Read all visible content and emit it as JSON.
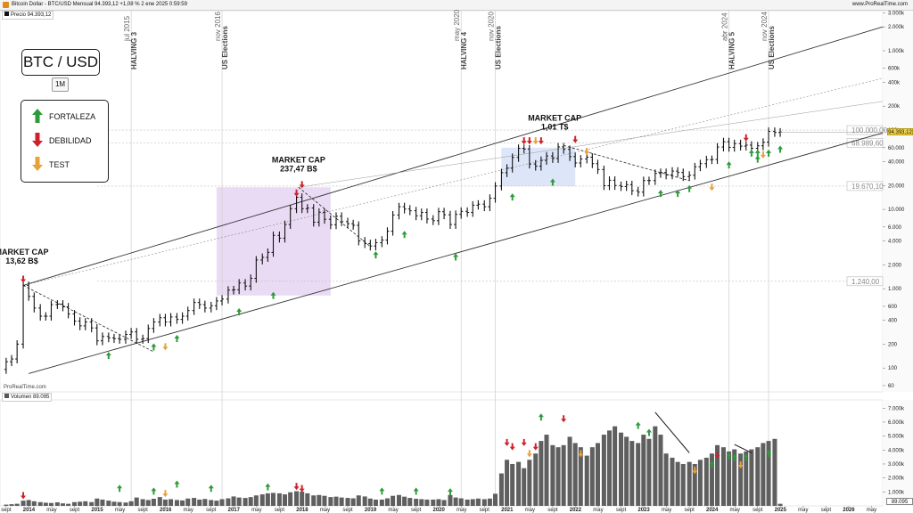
{
  "header": {
    "title": "Bitcoin Dollar - BTC/USD Mensual 94.393,12 +1,08 % 2 ene 2025 0:59:59",
    "brand": "www.ProRealTime.com"
  },
  "price_panel": {
    "label": "Precio 94.393,12",
    "symbol_box": "BTC / USD",
    "timeframe": "1M",
    "watermark": "ProRealTime.com"
  },
  "legend": {
    "items": [
      {
        "label": "FORTALEZA",
        "color": "#2e9a3a",
        "dir": "up"
      },
      {
        "label": "DEBILIDAD",
        "color": "#d0202a",
        "dir": "down"
      },
      {
        "label": "TEST",
        "color": "#e8a13a",
        "dir": "down"
      }
    ]
  },
  "events": [
    {
      "date": "jul 2015",
      "label": "HALVING 3",
      "t": 2015.5
    },
    {
      "date": "nov 2016",
      "label": "US Elections",
      "t": 2016.83
    },
    {
      "date": "may 2020",
      "label": "HALVING 4",
      "t": 2020.33
    },
    {
      "date": "nov 2020",
      "label": "US Elections",
      "t": 2020.83
    },
    {
      "date": "abr 2024",
      "label": "HALVING 5",
      "t": 2024.25
    },
    {
      "date": "nov 2024",
      "label": "US Elections",
      "t": 2024.83
    }
  ],
  "annotations": [
    {
      "line1": "MARKET CAP",
      "line2": "13,62 B$",
      "t": 2013.9,
      "price": 1300
    },
    {
      "line1": "MARKET CAP",
      "line2": "237,47 B$",
      "t": 2017.95,
      "price": 19000
    },
    {
      "line1": "MARKET CAP",
      "line2": "1,01 T$",
      "t": 2021.7,
      "price": 64000
    }
  ],
  "levels": [
    {
      "value": "100.000,00",
      "price": 100000
    },
    {
      "value": "68.989,60",
      "price": 68989.6
    },
    {
      "value": "19.670,10",
      "price": 19670.1
    },
    {
      "value": "1.240,00",
      "price": 1240
    }
  ],
  "last_price_tag": "94.393,12",
  "volume_panel": {
    "label": "Volumen 89.095",
    "last_tag": "89.095"
  },
  "x_axis_labels": [
    "sept",
    "2014",
    "may",
    "sept",
    "2015",
    "may",
    "sept",
    "2016",
    "may",
    "sept",
    "2017",
    "may",
    "sept",
    "2018",
    "may",
    "sept",
    "2019",
    "may",
    "sept",
    "2020",
    "may",
    "sept",
    "2021",
    "may",
    "sept",
    "2022",
    "may",
    "sept",
    "2023",
    "may",
    "sept",
    "2024",
    "may",
    "sept",
    "2025",
    "may",
    "sept",
    "2026",
    "may"
  ],
  "chart_data": {
    "type": "bar",
    "title": "Bitcoin Dollar - BTC/USD Mensual",
    "scale": "log",
    "price_ticks": [
      "3.000k",
      "2.000k",
      "1.000k",
      "600k",
      "400k",
      "200k",
      "100k",
      "60.000",
      "40.000",
      "20.000",
      "10.000",
      "6.000",
      "4.000",
      "2.000",
      "1.000",
      "600",
      "400",
      "200",
      "100",
      "60"
    ],
    "volume_ticks": [
      "7.000k",
      "6.000k",
      "5.000k",
      "4.000k",
      "3.000k",
      "2.000k",
      "1.000k"
    ],
    "series": [
      {
        "name": "Precio",
        "t": [
          2013.67,
          2013.75,
          2013.83,
          2013.92,
          2014.0,
          2014.08,
          2014.17,
          2014.25,
          2014.33,
          2014.42,
          2014.5,
          2014.58,
          2014.67,
          2014.75,
          2014.83,
          2014.92,
          2015.0,
          2015.08,
          2015.17,
          2015.25,
          2015.33,
          2015.42,
          2015.5,
          2015.58,
          2015.67,
          2015.75,
          2015.83,
          2015.92,
          2016.0,
          2016.08,
          2016.17,
          2016.25,
          2016.33,
          2016.42,
          2016.5,
          2016.58,
          2016.67,
          2016.75,
          2016.83,
          2016.92,
          2017.0,
          2017.08,
          2017.17,
          2017.25,
          2017.33,
          2017.42,
          2017.5,
          2017.58,
          2017.67,
          2017.75,
          2017.83,
          2017.92,
          2018.0,
          2018.08,
          2018.17,
          2018.25,
          2018.33,
          2018.42,
          2018.5,
          2018.58,
          2018.67,
          2018.75,
          2018.83,
          2018.92,
          2019.0,
          2019.08,
          2019.17,
          2019.25,
          2019.33,
          2019.42,
          2019.5,
          2019.58,
          2019.67,
          2019.75,
          2019.83,
          2019.92,
          2020.0,
          2020.08,
          2020.17,
          2020.25,
          2020.33,
          2020.42,
          2020.5,
          2020.58,
          2020.67,
          2020.75,
          2020.83,
          2020.92,
          2021.0,
          2021.08,
          2021.17,
          2021.25,
          2021.33,
          2021.42,
          2021.5,
          2021.58,
          2021.67,
          2021.75,
          2021.83,
          2021.92,
          2022.0,
          2022.08,
          2022.17,
          2022.25,
          2022.33,
          2022.42,
          2022.5,
          2022.58,
          2022.67,
          2022.75,
          2022.83,
          2022.92,
          2023.0,
          2023.08,
          2023.17,
          2023.25,
          2023.33,
          2023.42,
          2023.5,
          2023.58,
          2023.67,
          2023.75,
          2023.83,
          2023.92,
          2024.0,
          2024.08,
          2024.17,
          2024.25,
          2024.33,
          2024.42,
          2024.5,
          2024.58,
          2024.67,
          2024.75,
          2024.83,
          2024.92,
          2025.0
        ],
        "close": [
          120,
          130,
          200,
          1100,
          800,
          570,
          450,
          450,
          630,
          640,
          590,
          480,
          390,
          340,
          380,
          320,
          220,
          250,
          240,
          235,
          230,
          265,
          285,
          230,
          235,
          315,
          380,
          430,
          380,
          440,
          410,
          450,
          530,
          670,
          630,
          570,
          610,
          700,
          740,
          960,
          970,
          1180,
          1080,
          1350,
          2300,
          2480,
          2870,
          4700,
          4340,
          6450,
          10200,
          14200,
          10200,
          10400,
          6900,
          9200,
          7500,
          6400,
          8200,
          7000,
          6600,
          6300,
          4000,
          3700,
          3450,
          3800,
          4100,
          5300,
          8500,
          10800,
          10100,
          9600,
          8300,
          9150,
          7550,
          7200,
          9350,
          8550,
          6450,
          8650,
          9450,
          9150,
          11300,
          11650,
          10800,
          13800,
          19700,
          29000,
          33100,
          45200,
          58800,
          57700,
          37300,
          35000,
          41500,
          47100,
          43800,
          61300,
          57000,
          46300,
          38500,
          43200,
          45500,
          37700,
          31800,
          19900,
          23300,
          20000,
          19400,
          20500,
          17200,
          16500,
          23100,
          23100,
          28400,
          29200,
          27200,
          30400,
          29200,
          25900,
          27000,
          34500,
          37700,
          42300,
          42600,
          61100,
          71300,
          60600,
          67500,
          62700,
          64600,
          58900,
          63300,
          70300,
          96400,
          93400,
          94393
        ]
      }
    ]
  }
}
